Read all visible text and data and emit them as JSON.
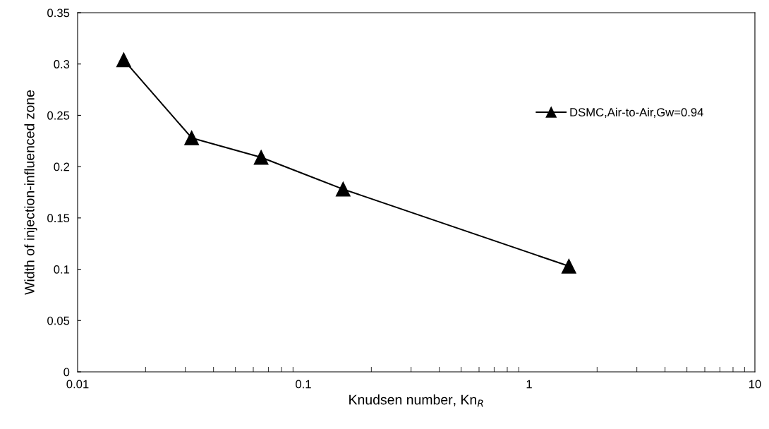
{
  "chart_data": {
    "type": "line",
    "xlabel": "Knudsen number, Kn$_{R}$",
    "ylabel": "Width of injection-influenced zone",
    "series": [
      {
        "name": "DSMC,Air-to-Air,Gw=0.94",
        "color": "#000000",
        "x": [
          0.016,
          0.032,
          0.065,
          0.15,
          1.5
        ],
        "values": [
          0.304,
          0.228,
          0.209,
          0.178,
          0.103
        ]
      }
    ],
    "log": "x",
    "xlim": [
      0.01,
      10
    ],
    "xticks": [
      0.01,
      0.1,
      1,
      10
    ],
    "ylim": [
      0,
      0.35
    ],
    "yticks": [
      0,
      0.05,
      0.1,
      0.15,
      0.2,
      0.25,
      0.3,
      0.35
    ],
    "grid": false,
    "legend": "top right",
    "marker": "triangle",
    "line_style": "solid"
  }
}
